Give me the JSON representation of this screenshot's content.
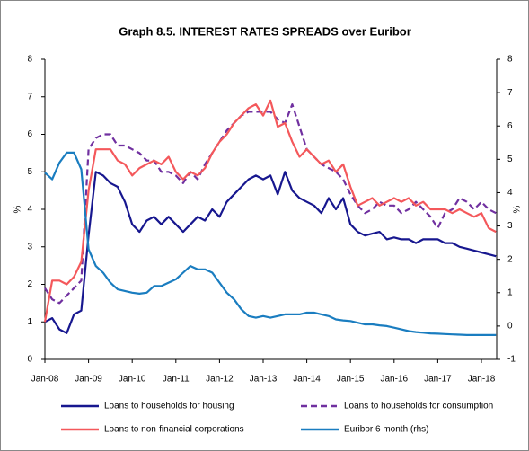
{
  "chart_data": {
    "type": "line",
    "title": "Graph 8.5. INTEREST RATES SPREADS over Euribor",
    "y_label": "%",
    "y2_label": "%",
    "categories": [
      "Jan-08",
      null,
      null,
      null,
      null,
      null,
      "Jan-09",
      null,
      null,
      null,
      null,
      null,
      "Jan-10",
      null,
      null,
      null,
      null,
      null,
      "Jan-11",
      null,
      null,
      null,
      null,
      null,
      "Jan-12",
      null,
      null,
      null,
      null,
      null,
      "Jan-13",
      null,
      null,
      null,
      null,
      null,
      "Jan-14",
      null,
      null,
      null,
      null,
      null,
      "Jan-15",
      null,
      null,
      null,
      null,
      null,
      "Jan-16",
      null,
      null,
      null,
      null,
      null,
      "Jan-17",
      null,
      null,
      null,
      null,
      null,
      "Jan-18",
      null,
      null
    ],
    "ylim": [
      0,
      8
    ],
    "yticks": [
      0,
      1,
      2,
      3,
      4,
      5,
      6,
      7,
      8
    ],
    "y2lim": [
      -1,
      8
    ],
    "y2ticks": [
      -1,
      0,
      1,
      2,
      3,
      4,
      5,
      6,
      7,
      8
    ],
    "legend": "bottom",
    "series": [
      {
        "name": "Loans to households for housing",
        "color": "#17178f",
        "dash": false,
        "values": [
          1.0,
          1.1,
          0.8,
          0.7,
          1.2,
          1.3,
          3.3,
          5.0,
          4.9,
          4.7,
          4.6,
          4.2,
          3.6,
          3.4,
          3.7,
          3.8,
          3.6,
          3.8,
          3.6,
          3.4,
          3.6,
          3.8,
          3.7,
          4.0,
          3.8,
          4.2,
          4.4,
          4.6,
          4.8,
          4.9,
          4.8,
          4.9,
          4.4,
          5.0,
          4.5,
          4.3,
          4.2,
          4.1,
          3.9,
          4.3,
          4.0,
          4.3,
          3.6,
          3.4,
          3.3,
          3.35,
          3.4,
          3.2,
          3.25,
          3.2,
          3.2,
          3.1,
          3.2,
          3.2,
          3.2,
          3.1,
          3.1,
          3.0,
          2.95,
          2.9,
          2.85,
          2.8,
          2.75
        ]
      },
      {
        "name": "Loans to households for consumption",
        "color": "#7030a0",
        "dash": true,
        "values": [
          1.9,
          1.6,
          1.5,
          1.7,
          1.9,
          2.1,
          5.6,
          5.9,
          6.0,
          6.0,
          5.7,
          5.7,
          5.6,
          5.5,
          5.3,
          5.3,
          5.0,
          5.0,
          4.9,
          4.7,
          5.0,
          4.8,
          5.2,
          5.5,
          5.8,
          6.1,
          6.3,
          6.5,
          6.6,
          6.6,
          6.6,
          6.6,
          6.4,
          6.3,
          6.8,
          6.2,
          5.6,
          5.4,
          5.2,
          5.1,
          5.0,
          4.8,
          4.4,
          4.1,
          3.9,
          4.0,
          4.2,
          4.1,
          4.1,
          3.9,
          4.0,
          4.2,
          4.0,
          3.8,
          3.5,
          3.9,
          4.0,
          4.3,
          4.2,
          4.0,
          4.2,
          4.0,
          3.9
        ]
      },
      {
        "name": "Loans to non-financial corporations",
        "color": "#f4585b",
        "dash": false,
        "values": [
          1.0,
          2.1,
          2.1,
          2.0,
          2.2,
          2.6,
          4.5,
          5.6,
          5.6,
          5.6,
          5.3,
          5.2,
          4.9,
          5.1,
          5.2,
          5.3,
          5.2,
          5.4,
          5.0,
          4.8,
          5.0,
          4.9,
          5.1,
          5.5,
          5.8,
          6.0,
          6.3,
          6.5,
          6.7,
          6.8,
          6.5,
          6.9,
          6.2,
          6.3,
          5.8,
          5.4,
          5.6,
          5.4,
          5.2,
          5.3,
          5.0,
          5.2,
          4.6,
          4.1,
          4.2,
          4.3,
          4.1,
          4.2,
          4.3,
          4.2,
          4.3,
          4.1,
          4.2,
          4.0,
          4.0,
          4.0,
          3.9,
          4.0,
          3.9,
          3.8,
          3.9,
          3.5,
          3.4
        ]
      },
      {
        "name": "Euribor 6 month (rhs)",
        "color": "#1a7dc0",
        "dash": false,
        "axis": "y2",
        "values": [
          4.6,
          4.4,
          4.9,
          5.2,
          5.2,
          4.7,
          2.3,
          1.8,
          1.6,
          1.3,
          1.1,
          1.05,
          1.0,
          0.97,
          1.0,
          1.2,
          1.2,
          1.3,
          1.4,
          1.6,
          1.8,
          1.7,
          1.7,
          1.6,
          1.3,
          1.0,
          0.8,
          0.5,
          0.3,
          0.25,
          0.3,
          0.25,
          0.3,
          0.35,
          0.35,
          0.35,
          0.4,
          0.4,
          0.35,
          0.3,
          0.2,
          0.17,
          0.15,
          0.1,
          0.05,
          0.05,
          0.02,
          0.0,
          -0.05,
          -0.1,
          -0.15,
          -0.18,
          -0.2,
          -0.22,
          -0.23,
          -0.24,
          -0.25,
          -0.26,
          -0.27,
          -0.27,
          -0.27,
          -0.27,
          -0.27
        ]
      }
    ]
  }
}
